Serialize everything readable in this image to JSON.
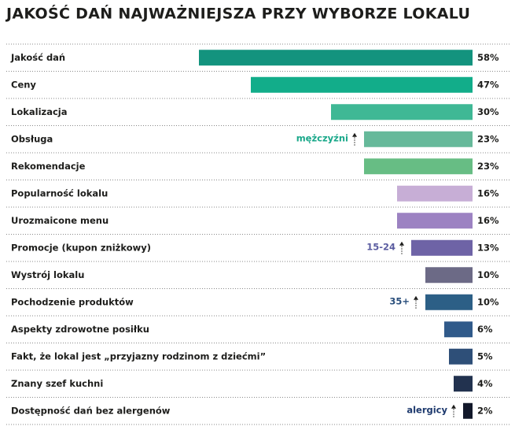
{
  "chart_data": {
    "type": "bar",
    "orientation": "horizontal",
    "title": "JAKOŚĆ DAŃ NAJWAŻNIEJSZA PRZY WYBORZE LOKALU",
    "categories": [
      "Jakość dań",
      "Ceny",
      "Lokalizacja",
      "Obsługa",
      "Rekomendacje",
      "Popularność lokalu",
      "Urozmaicone menu",
      "Promocje (kupon zniżkowy)",
      "Wystrój lokalu",
      "Pochodzenie produktów",
      "Aspekty zdrowotne posiłku",
      "Fakt, że lokal jest „przyjazny rodzinom z dziećmi”",
      "Znany szef kuchni",
      "Dostępność dań bez alergenów"
    ],
    "values": [
      58,
      47,
      30,
      23,
      23,
      16,
      16,
      13,
      10,
      10,
      6,
      5,
      4,
      2
    ],
    "value_labels": [
      "58%",
      "47%",
      "30%",
      "23%",
      "23%",
      "16%",
      "16%",
      "13%",
      "10%",
      "10%",
      "6%",
      "5%",
      "4%",
      "2%"
    ],
    "colors": [
      "#13937e",
      "#12ad8a",
      "#3fb895",
      "#66b99a",
      "#67bd84",
      "#c7aed6",
      "#9c82c2",
      "#6e63a6",
      "#6c6a86",
      "#2c5f86",
      "#305a8a",
      "#2e4f78",
      "#22324f",
      "#12182a"
    ],
    "annotations": [
      null,
      null,
      null,
      "mężczyźni",
      null,
      null,
      null,
      "15-24",
      null,
      "35+",
      null,
      null,
      null,
      "alergicy"
    ],
    "annotation_colors": [
      null,
      null,
      null,
      "#1aa88a",
      null,
      null,
      null,
      "#5a5ca0",
      null,
      "#2a4f7c",
      null,
      null,
      null,
      "#1e3a6e"
    ]
  }
}
